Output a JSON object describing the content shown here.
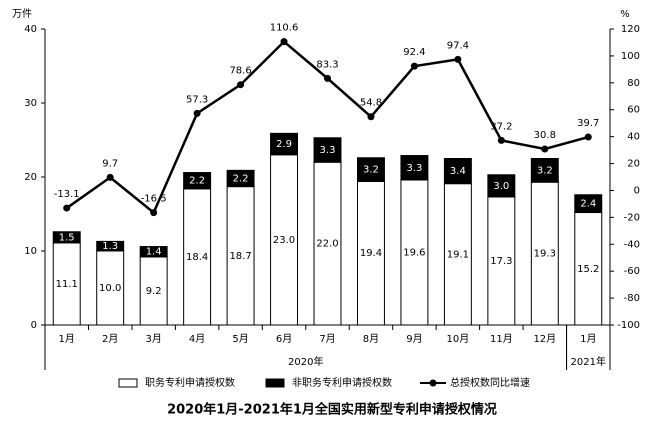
{
  "chart_data": {
    "type": "bar-line",
    "title": "2020年1月-2021年1月全国实用新型专利申请授权情况",
    "y_label": "万件",
    "y2_label": "%",
    "categories": [
      "1月",
      "2月",
      "3月",
      "4月",
      "5月",
      "6月",
      "7月",
      "8月",
      "9月",
      "10月",
      "11月",
      "12月",
      "1月"
    ],
    "x_groups": [
      {
        "label": "2020年",
        "count": 12
      },
      {
        "label": "2021年",
        "count": 1
      }
    ],
    "ylim": [
      0,
      40
    ],
    "yticks": [
      0,
      10,
      20,
      30,
      40
    ],
    "y2lim": [
      -100,
      120
    ],
    "y2ticks": [
      -100,
      -80,
      -60,
      -40,
      -20,
      0,
      20,
      40,
      60,
      80,
      100,
      120
    ],
    "series": [
      {
        "name": "职务专利申请授权数",
        "color": "#ffffff",
        "stack": true,
        "values": [
          11.1,
          10.0,
          9.2,
          18.4,
          18.7,
          23.0,
          22.0,
          19.4,
          19.6,
          19.1,
          17.3,
          19.3,
          15.2
        ],
        "value_labels": [
          "11.1",
          "10.0",
          "9.2",
          "18.4",
          "18.7",
          "23.0",
          "22.0",
          "19.4",
          "19.6",
          "19.1",
          "17.3",
          "19.3",
          "15.2"
        ]
      },
      {
        "name": "非职务专利申请授权数",
        "color": "#000000",
        "stack": true,
        "values": [
          1.5,
          1.3,
          1.4,
          2.2,
          2.2,
          2.9,
          3.3,
          3.2,
          3.3,
          3.4,
          3.0,
          3.2,
          2.4
        ],
        "value_labels": [
          "1.5",
          "1.3",
          "1.4",
          "2.2",
          "2.2",
          "2.9",
          "3.3",
          "3.2",
          "3.3",
          "3.4",
          "3.0",
          "3.2",
          "2.4"
        ]
      },
      {
        "name": "总授权数同比增速",
        "color": "#000000",
        "axis": "y2",
        "kind": "line",
        "values": [
          -13.1,
          9.7,
          -16.5,
          57.3,
          78.6,
          110.6,
          83.3,
          54.8,
          92.4,
          97.4,
          37.2,
          30.8,
          39.7
        ]
      }
    ]
  }
}
